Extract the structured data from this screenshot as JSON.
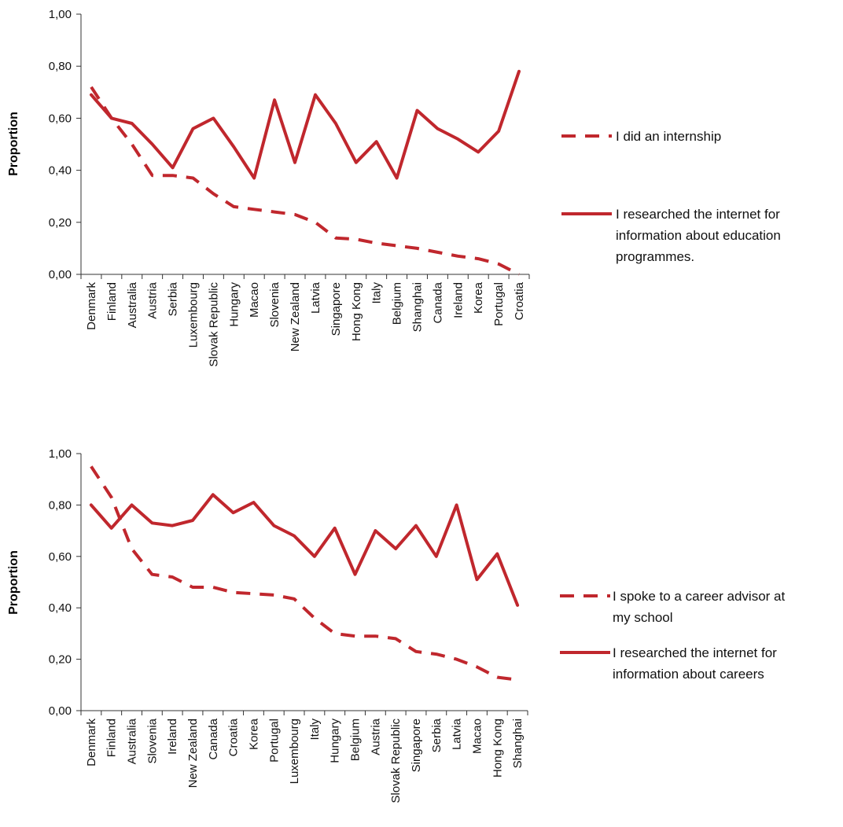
{
  "chart_data": [
    {
      "type": "line",
      "ylabel": "Proportion",
      "ylim": [
        0,
        1
      ],
      "yticks": [
        "0,00",
        "0,20",
        "0,40",
        "0,60",
        "0,80",
        "1,00"
      ],
      "categories": [
        "Denmark",
        "Finland",
        "Australia",
        "Austria",
        "Serbia",
        "Luxembourg",
        "Slovak Republic",
        "Hungary",
        "Macao",
        "Slovenia",
        "New Zealand",
        "Latvia",
        "Singapore",
        "Hong Kong",
        "Italy",
        "Belgium",
        "Shanghai",
        "Canada",
        "Ireland",
        "Korea",
        "Portugal",
        "Croatia"
      ],
      "series": [
        {
          "name": "I did an internship",
          "style": "dashed",
          "color": "#c0272d",
          "values": [
            0.72,
            0.6,
            0.5,
            0.38,
            0.38,
            0.37,
            0.31,
            0.26,
            0.25,
            0.24,
            0.23,
            0.2,
            0.14,
            0.135,
            0.12,
            0.11,
            0.1,
            0.085,
            0.07,
            0.06,
            0.04,
            0.0
          ]
        },
        {
          "name": "I researched the internet for information about education programmes.",
          "style": "solid",
          "color": "#c0272d",
          "values": [
            0.69,
            0.6,
            0.58,
            0.5,
            0.41,
            0.56,
            0.6,
            0.49,
            0.37,
            0.67,
            0.43,
            0.69,
            0.58,
            0.43,
            0.51,
            0.37,
            0.63,
            0.56,
            0.52,
            0.47,
            0.55,
            0.78
          ]
        }
      ],
      "legend": {
        "position": "right",
        "items": [
          {
            "style": "dashed",
            "lines": [
              "I did an internship"
            ]
          },
          {
            "style": "solid",
            "lines": [
              "I researched the internet for",
              "information about education",
              "programmes."
            ]
          }
        ]
      }
    },
    {
      "type": "line",
      "ylabel": "Proportion",
      "ylim": [
        0,
        1
      ],
      "yticks": [
        "0,00",
        "0,20",
        "0,40",
        "0,60",
        "0,80",
        "1,00"
      ],
      "categories": [
        "Denmark",
        "Finland",
        "Australia",
        "Slovenia",
        "Ireland",
        "New Zealand",
        "Canada",
        "Croatia",
        "Korea",
        "Portugal",
        "Luxembourg",
        "Italy",
        "Hungary",
        "Belgium",
        "Austria",
        "Slovak Republic",
        "Singapore",
        "Serbia",
        "Latvia",
        "Macao",
        "Hong Kong",
        "Shanghai"
      ],
      "series": [
        {
          "name": "I spoke to a career advisor at my school",
          "style": "dashed",
          "color": "#c0272d",
          "values": [
            0.95,
            0.83,
            0.63,
            0.53,
            0.52,
            0.48,
            0.48,
            0.46,
            0.455,
            0.45,
            0.435,
            0.36,
            0.3,
            0.29,
            0.29,
            0.28,
            0.23,
            0.22,
            0.2,
            0.17,
            0.13,
            0.12
          ]
        },
        {
          "name": "I researched the internet for information about careers",
          "style": "solid",
          "color": "#c0272d",
          "values": [
            0.8,
            0.71,
            0.8,
            0.73,
            0.72,
            0.74,
            0.84,
            0.77,
            0.81,
            0.72,
            0.68,
            0.6,
            0.71,
            0.53,
            0.7,
            0.63,
            0.72,
            0.6,
            0.8,
            0.51,
            0.61,
            0.41
          ]
        }
      ],
      "legend": {
        "position": "right",
        "items": [
          {
            "style": "dashed",
            "lines": [
              "I spoke to a career advisor at",
              "my school"
            ]
          },
          {
            "style": "solid",
            "lines": [
              "I researched the internet for",
              "information about careers"
            ]
          }
        ]
      }
    }
  ]
}
